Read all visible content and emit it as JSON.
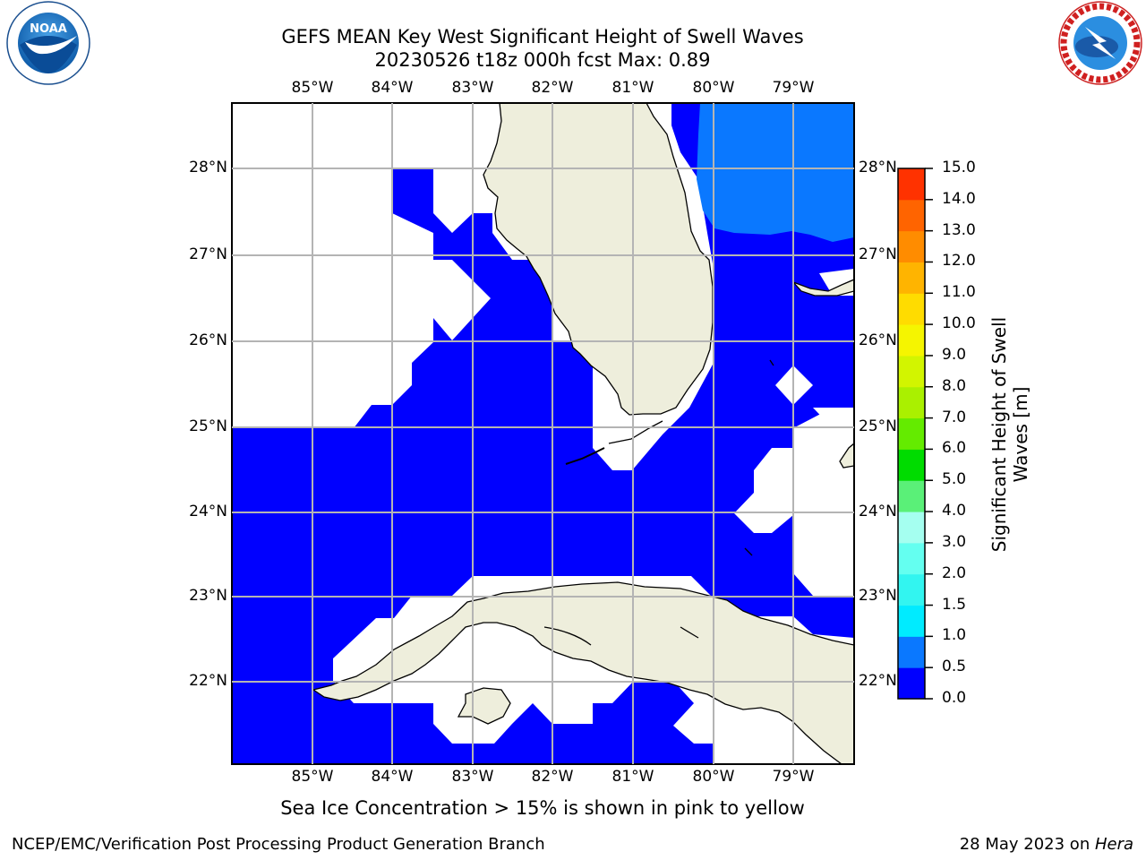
{
  "title": {
    "line1": "GEFS MEAN Key West Significant Height of Swell Waves",
    "line2": "20230526 t18z 000h fcst   Max: 0.89"
  },
  "map": {
    "lon_labels": [
      "85°W",
      "84°W",
      "83°W",
      "82°W",
      "81°W",
      "80°W",
      "79°W"
    ],
    "lat_labels": [
      "28°N",
      "27°N",
      "26°N",
      "25°N",
      "24°N",
      "23°N",
      "22°N"
    ],
    "ocean_color": "#0000ff",
    "land_color": "#eeeedc"
  },
  "colorbar": {
    "title": "Significant Height of Swell Waves [m]",
    "ticks": [
      "0.0",
      "0.5",
      "1.0",
      "1.5",
      "2.0",
      "3.0",
      "4.0",
      "5.0",
      "6.0",
      "7.0",
      "8.0",
      "9.0",
      "10.0",
      "11.0",
      "12.0",
      "13.0",
      "14.0",
      "15.0"
    ],
    "colors": [
      "#0000ff",
      "#0a78ff",
      "#00ebff",
      "#32f5f0",
      "#64fff0",
      "#a5fff0",
      "#5af078",
      "#00dc00",
      "#64eb00",
      "#aaf000",
      "#d2f500",
      "#f5f500",
      "#ffdc00",
      "#ffb400",
      "#ff8c00",
      "#ff6400",
      "#ff3200"
    ]
  },
  "footer": {
    "note": "Sea Ice Concentration > 15% is shown in pink to yellow",
    "left": "NCEP/EMC/Verification Post Processing Product Generation Branch",
    "right_date": "28 May 2023 on ",
    "right_host": "Hera"
  },
  "logos": {
    "noaa_text": "NOAA",
    "nws_text": "NATIONAL WEATHER SERVICE"
  }
}
